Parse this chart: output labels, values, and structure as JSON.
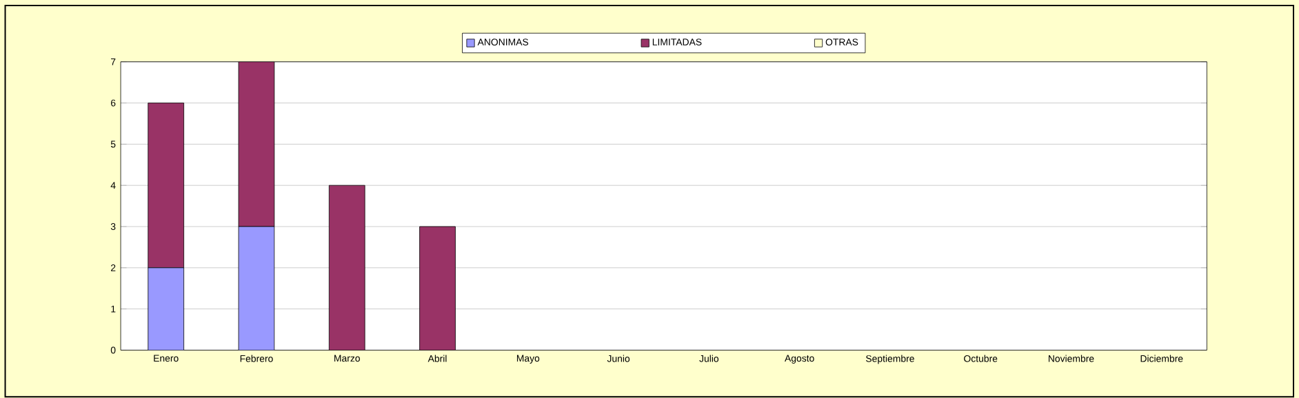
{
  "chart_data": {
    "type": "bar",
    "stacked": true,
    "categories": [
      "Enero",
      "Febrero",
      "Marzo",
      "Abril",
      "Mayo",
      "Junio",
      "Julio",
      "Agosto",
      "Septiembre",
      "Octubre",
      "Noviembre",
      "Diciembre"
    ],
    "series": [
      {
        "name": "ANONIMAS",
        "color": "#9999ff",
        "values": [
          2,
          3,
          0,
          0,
          0,
          0,
          0,
          0,
          0,
          0,
          0,
          0
        ]
      },
      {
        "name": "LIMITADAS",
        "color": "#993366",
        "values": [
          4,
          4,
          4,
          3,
          0,
          0,
          0,
          0,
          0,
          0,
          0,
          0
        ]
      },
      {
        "name": "OTRAS",
        "color": "#ffffcc",
        "values": [
          0,
          0,
          0,
          0,
          0,
          0,
          0,
          0,
          0,
          0,
          0,
          0
        ]
      }
    ],
    "ylim": [
      0,
      7
    ],
    "yticks": [
      0,
      1,
      2,
      3,
      4,
      5,
      6,
      7
    ],
    "grid": "y",
    "legend": "top"
  }
}
